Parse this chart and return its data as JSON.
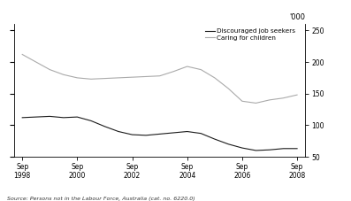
{
  "ylabel": "'000",
  "source_text": "Source: Persons not in the Labour Force, Australia (cat. no. 6220.0)",
  "ylim": [
    50,
    260
  ],
  "yticks": [
    50,
    100,
    150,
    200,
    250
  ],
  "x_labels": [
    "Sep\n1998",
    "Sep\n2000",
    "Sep\n2002",
    "Sep\n2004",
    "Sep\n2006",
    "Sep\n2008"
  ],
  "x_tick_positions": [
    0,
    2,
    4,
    6,
    8,
    10
  ],
  "discouraged_x": [
    0,
    0.5,
    1,
    1.5,
    2,
    2.5,
    3,
    3.5,
    4,
    4.5,
    5,
    5.5,
    6,
    6.5,
    7,
    7.5,
    8,
    8.5,
    9,
    9.5,
    10
  ],
  "discouraged_y": [
    112,
    113,
    114,
    112,
    113,
    107,
    98,
    90,
    85,
    84,
    86,
    88,
    90,
    87,
    78,
    70,
    64,
    60,
    61,
    63,
    63
  ],
  "caring_x": [
    0,
    0.5,
    1,
    1.5,
    2,
    2.5,
    3,
    3.5,
    4,
    4.5,
    5,
    5.5,
    6,
    6.5,
    7,
    7.5,
    8,
    8.5,
    9,
    9.5,
    10
  ],
  "caring_y": [
    212,
    200,
    188,
    180,
    175,
    173,
    174,
    175,
    176,
    177,
    178,
    185,
    193,
    188,
    175,
    158,
    138,
    135,
    140,
    143,
    148
  ],
  "discouraged_color": "#1a1a1a",
  "caring_color": "#aaaaaa",
  "bg_color": "#ffffff",
  "legend_discouraged": "Discouraged job seekers",
  "legend_caring": "Caring for children"
}
